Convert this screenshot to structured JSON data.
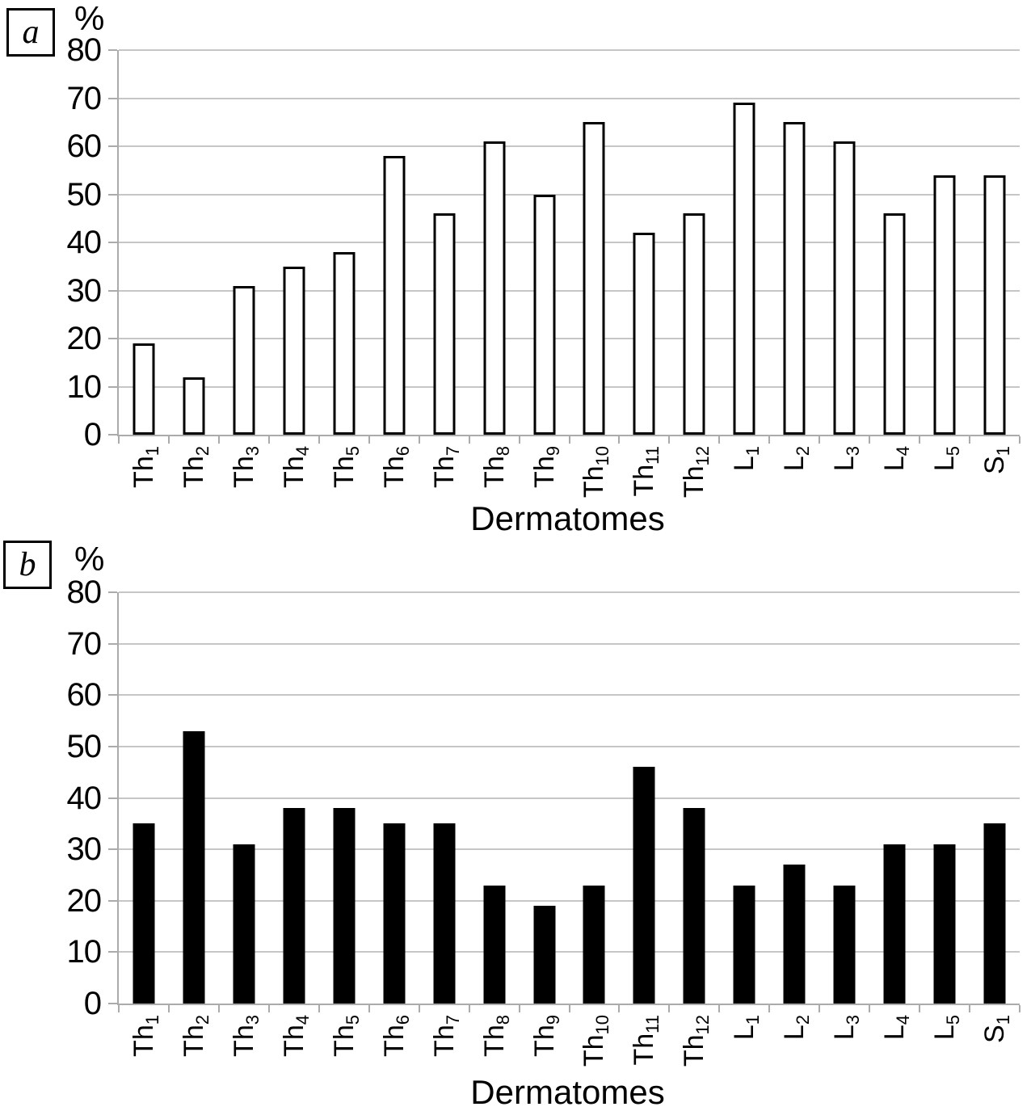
{
  "figure": {
    "panels": [
      {
        "label": "a",
        "xlabel": "Dermatomes",
        "ylabel": "%"
      },
      {
        "label": "b",
        "xlabel": "Dermatomes",
        "ylabel": "%"
      }
    ]
  },
  "chart_data": [
    {
      "type": "bar",
      "panel": "a",
      "title": "",
      "xlabel": "Dermatomes",
      "ylabel": "%",
      "ylim": [
        0,
        80
      ],
      "ytick_step": 10,
      "yticks": [
        0,
        10,
        20,
        30,
        40,
        50,
        60,
        70,
        80
      ],
      "grid": true,
      "legend": false,
      "bar_style": "outlined-white",
      "colors": {
        "bar_fill": "#ffffff",
        "bar_border": "#000000",
        "grid": "#c6c6c6",
        "axis": "#ababab",
        "text": "#000000"
      },
      "categories": [
        {
          "base": "Th",
          "sub": "1"
        },
        {
          "base": "Th",
          "sub": "2"
        },
        {
          "base": "Th",
          "sub": "3"
        },
        {
          "base": "Th",
          "sub": "4"
        },
        {
          "base": "Th",
          "sub": "5"
        },
        {
          "base": "Th",
          "sub": "6"
        },
        {
          "base": "Th",
          "sub": "7"
        },
        {
          "base": "Th",
          "sub": "8"
        },
        {
          "base": "Th",
          "sub": "9"
        },
        {
          "base": "Th",
          "sub": "10"
        },
        {
          "base": "Th",
          "sub": "11"
        },
        {
          "base": "Th",
          "sub": "12"
        },
        {
          "base": "L",
          "sub": "1"
        },
        {
          "base": "L",
          "sub": "2"
        },
        {
          "base": "L",
          "sub": "3"
        },
        {
          "base": "L",
          "sub": "4"
        },
        {
          "base": "L",
          "sub": "5"
        },
        {
          "base": "S",
          "sub": "1"
        }
      ],
      "values": [
        19,
        12,
        31,
        35,
        38,
        58,
        46,
        61,
        50,
        65,
        42,
        46,
        69,
        65,
        61,
        46,
        54,
        54
      ]
    },
    {
      "type": "bar",
      "panel": "b",
      "title": "",
      "xlabel": "Dermatomes",
      "ylabel": "%",
      "ylim": [
        0,
        80
      ],
      "ytick_step": 10,
      "yticks": [
        0,
        10,
        20,
        30,
        40,
        50,
        60,
        70,
        80
      ],
      "grid": true,
      "legend": false,
      "bar_style": "solid-black",
      "colors": {
        "bar_fill": "#000000",
        "bar_border": "#000000",
        "grid": "#c6c6c6",
        "axis": "#ababab",
        "text": "#000000"
      },
      "categories": [
        {
          "base": "Th",
          "sub": "1"
        },
        {
          "base": "Th",
          "sub": "2"
        },
        {
          "base": "Th",
          "sub": "3"
        },
        {
          "base": "Th",
          "sub": "4"
        },
        {
          "base": "Th",
          "sub": "5"
        },
        {
          "base": "Th",
          "sub": "6"
        },
        {
          "base": "Th",
          "sub": "7"
        },
        {
          "base": "Th",
          "sub": "8"
        },
        {
          "base": "Th",
          "sub": "9"
        },
        {
          "base": "Th",
          "sub": "10"
        },
        {
          "base": "Th",
          "sub": "11"
        },
        {
          "base": "Th",
          "sub": "12"
        },
        {
          "base": "L",
          "sub": "1"
        },
        {
          "base": "L",
          "sub": "2"
        },
        {
          "base": "L",
          "sub": "3"
        },
        {
          "base": "L",
          "sub": "4"
        },
        {
          "base": "L",
          "sub": "5"
        },
        {
          "base": "S",
          "sub": "1"
        }
      ],
      "values": [
        35,
        53,
        31,
        38,
        38,
        35,
        35,
        23,
        19,
        23,
        46,
        38,
        23,
        27,
        23,
        31,
        31,
        35
      ]
    }
  ]
}
